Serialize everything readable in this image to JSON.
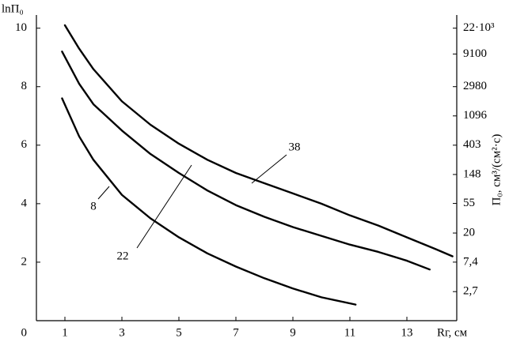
{
  "chart_data": {
    "type": "line",
    "y_label": "lnП₀",
    "x_label": "Rг, см",
    "y2_label": "П₀, см³/(см²·с)",
    "xlim": [
      0,
      14.75
    ],
    "ylim": [
      0,
      10.45
    ],
    "xticks": [
      1,
      3,
      5,
      7,
      9,
      11,
      13
    ],
    "yticks": [
      0,
      2,
      4,
      6,
      8,
      10
    ],
    "y2scale": "log",
    "y2lim": [
      1,
      34500
    ],
    "y2ticks": [
      {
        "value": 22000,
        "label": "22·10³"
      },
      9100,
      2980,
      1096,
      403,
      148,
      55,
      20,
      {
        "value": 7.4,
        "label": "7,4"
      },
      {
        "value": 2.7,
        "label": "2,7"
      }
    ],
    "color": "#000000",
    "series": [
      {
        "name": "8",
        "x": [
          0.9,
          1.5,
          2,
          3,
          4,
          5,
          6,
          7,
          8,
          9,
          10,
          11.2
        ],
        "values": [
          7.6,
          6.3,
          5.5,
          4.3,
          3.5,
          2.85,
          2.3,
          1.85,
          1.45,
          1.1,
          0.8,
          0.55
        ]
      },
      {
        "name": "22",
        "x": [
          0.9,
          1.5,
          2,
          3,
          4,
          5,
          6,
          7,
          8,
          9,
          10,
          11,
          12,
          13,
          13.8
        ],
        "values": [
          9.2,
          8.1,
          7.4,
          6.5,
          5.7,
          5.05,
          4.45,
          3.95,
          3.55,
          3.2,
          2.9,
          2.6,
          2.35,
          2.05,
          1.75
        ]
      },
      {
        "name": "38",
        "x": [
          1,
          1.5,
          2,
          3,
          4,
          5,
          6,
          7,
          8,
          9,
          10,
          11,
          12,
          13,
          14,
          14.6
        ],
        "values": [
          10.1,
          9.3,
          8.6,
          7.5,
          6.7,
          6.05,
          5.5,
          5.05,
          4.7,
          4.35,
          4.0,
          3.6,
          3.25,
          2.85,
          2.45,
          2.2
        ]
      }
    ]
  }
}
